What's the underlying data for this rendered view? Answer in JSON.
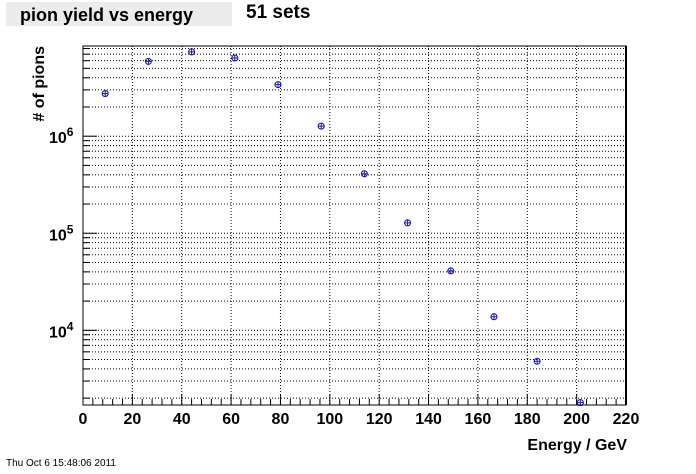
{
  "header": {
    "title": "pion yield vs energy",
    "subtitle": "51 sets"
  },
  "footer": {
    "timestamp": "Thu Oct  6 15:48:06 2011"
  },
  "chart_data": {
    "type": "scatter",
    "title": "pion yield vs energy",
    "xlabel": "Energy / GeV",
    "ylabel": "# of pions",
    "xlim": [
      0,
      220
    ],
    "ylim": [
      1700,
      8500000
    ],
    "y_scale": "log",
    "grid": true,
    "marker_color": "#1a1aa6",
    "x_ticks": [
      0,
      20,
      40,
      60,
      80,
      100,
      120,
      140,
      160,
      180,
      200,
      220
    ],
    "y_ticks": [
      {
        "value": 10000,
        "base": "10",
        "exp": "4"
      },
      {
        "value": 100000,
        "base": "10",
        "exp": "5"
      },
      {
        "value": 1000000,
        "base": "10",
        "exp": "6"
      }
    ],
    "points": [
      {
        "x": 9,
        "y": 2750000
      },
      {
        "x": 26.5,
        "y": 5900000
      },
      {
        "x": 44,
        "y": 7400000
      },
      {
        "x": 61.5,
        "y": 6400000
      },
      {
        "x": 79,
        "y": 3400000
      },
      {
        "x": 96.5,
        "y": 1270000
      },
      {
        "x": 114,
        "y": 410000
      },
      {
        "x": 131.5,
        "y": 128000
      },
      {
        "x": 149,
        "y": 41000
      },
      {
        "x": 166.5,
        "y": 13800
      },
      {
        "x": 184,
        "y": 4800
      },
      {
        "x": 201.5,
        "y": 1800
      }
    ]
  }
}
